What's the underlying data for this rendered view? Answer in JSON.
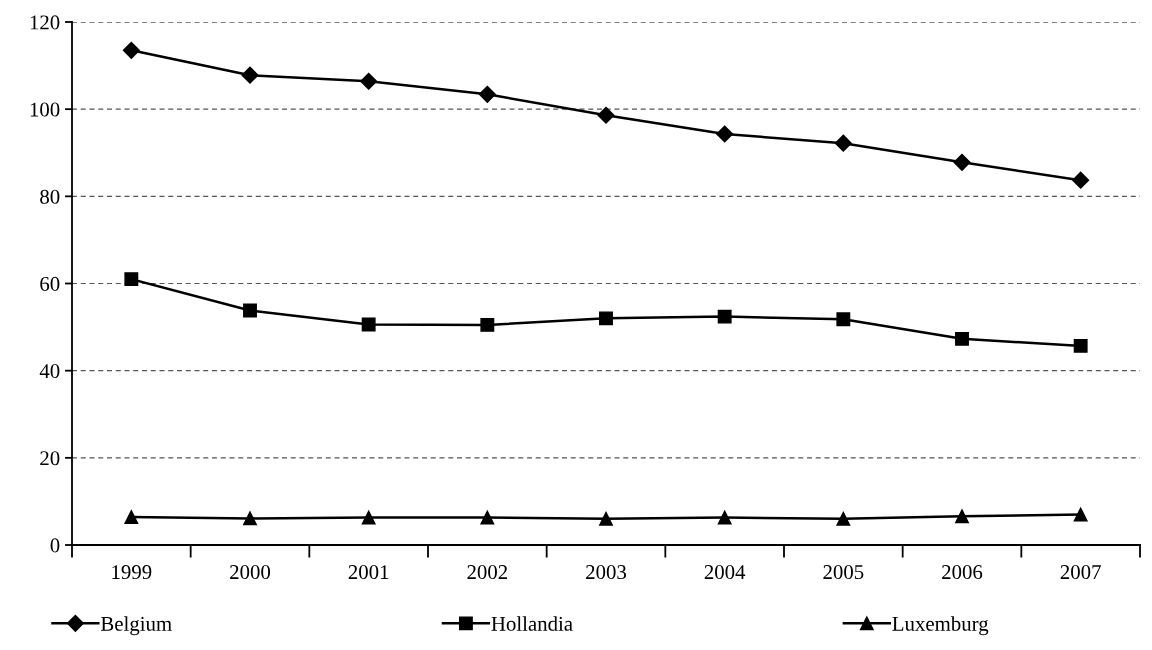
{
  "chart_data": {
    "type": "line",
    "categories": [
      "1999",
      "2000",
      "2001",
      "2002",
      "2003",
      "2004",
      "2005",
      "2006",
      "2007"
    ],
    "series": [
      {
        "name": "Belgium",
        "color": "#000000",
        "marker": "diamond",
        "values": [
          113.5,
          107.8,
          106.4,
          103.4,
          98.6,
          94.3,
          92.2,
          87.8,
          83.7
        ]
      },
      {
        "name": "Hollandia",
        "color": "#000000",
        "marker": "square",
        "values": [
          61.0,
          53.8,
          50.6,
          50.5,
          52.0,
          52.4,
          51.8,
          47.3,
          45.7
        ]
      },
      {
        "name": "Luxemburg",
        "color": "#000000",
        "marker": "triangle",
        "values": [
          6.4,
          6.1,
          6.3,
          6.3,
          6.0,
          6.3,
          6.0,
          6.6,
          7.0
        ]
      }
    ],
    "ylim": [
      0,
      120
    ],
    "yticks": [
      0,
      20,
      40,
      60,
      80,
      100,
      120
    ],
    "grid": "y",
    "legend": "bottom",
    "line_style": "solid"
  }
}
